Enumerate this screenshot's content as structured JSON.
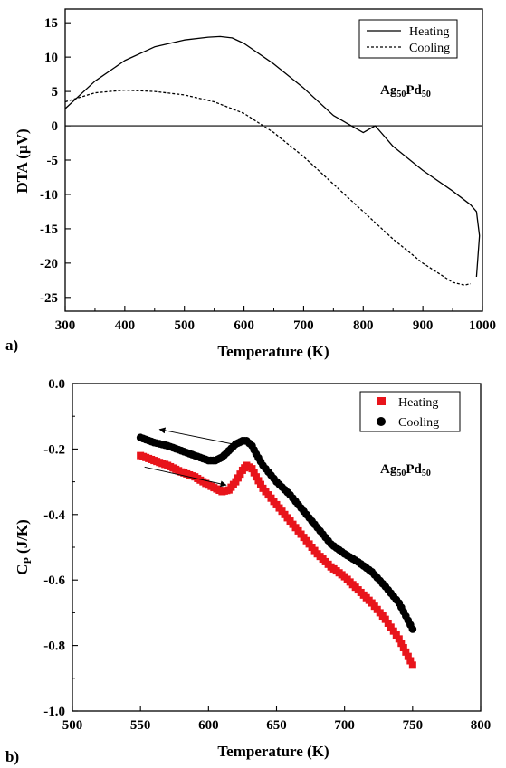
{
  "chart_data": [
    {
      "panel_label": "a)",
      "type": "line",
      "xlabel": "Temperature (K)",
      "ylabel": "DTA (µV)",
      "xlim": [
        300,
        1000
      ],
      "ylim": [
        -27,
        17
      ],
      "xticks": [
        300,
        400,
        500,
        600,
        700,
        800,
        900,
        1000
      ],
      "yticks": [
        -25,
        -20,
        -15,
        -10,
        -5,
        0,
        5,
        10,
        15
      ],
      "zero_line": true,
      "legend_position": "top-right",
      "annotation": {
        "base1": "Ag",
        "sub1": "50",
        "base2": "Pd",
        "sub2": "50"
      },
      "series": [
        {
          "name": "Heating",
          "style": "solid",
          "x": [
            300,
            350,
            400,
            450,
            500,
            540,
            560,
            580,
            600,
            650,
            700,
            750,
            800,
            820,
            850,
            900,
            950,
            980,
            990,
            995,
            990
          ],
          "y": [
            2.5,
            6.5,
            9.5,
            11.5,
            12.5,
            12.9,
            13.0,
            12.8,
            12.0,
            9.0,
            5.5,
            1.5,
            -1.0,
            0,
            -3.0,
            -6.5,
            -9.5,
            -11.5,
            -12.5,
            -16.0,
            -22.0
          ]
        },
        {
          "name": "Cooling",
          "style": "dashed",
          "x": [
            300,
            350,
            400,
            450,
            500,
            550,
            600,
            650,
            700,
            750,
            800,
            850,
            900,
            950,
            970,
            980
          ],
          "y": [
            3.5,
            4.8,
            5.2,
            5.0,
            4.5,
            3.5,
            1.8,
            -1.0,
            -4.5,
            -8.5,
            -12.5,
            -16.5,
            -20.0,
            -22.8,
            -23.2,
            -23.0
          ]
        }
      ]
    },
    {
      "panel_label": "b)",
      "type": "scatter",
      "xlabel": "Temperature (K)",
      "ylabel": "C",
      "ylabel_sub": "P",
      "ylabel_unit": " (J/K)",
      "xlim": [
        500,
        800
      ],
      "ylim": [
        -1.0,
        0.0
      ],
      "xticks": [
        500,
        550,
        600,
        650,
        700,
        750,
        800
      ],
      "yticks": [
        -1.0,
        -0.8,
        -0.6,
        -0.4,
        -0.2,
        0.0
      ],
      "legend_position": "top-right",
      "annotation": {
        "base1": "Ag",
        "sub1": "50",
        "base2": "Pd",
        "sub2": "50"
      },
      "series": [
        {
          "name": "Heating",
          "marker": "square",
          "color": "#e8141b",
          "x": [
            550,
            560,
            570,
            580,
            590,
            600,
            610,
            615,
            620,
            625,
            628,
            632,
            635,
            640,
            650,
            660,
            670,
            680,
            690,
            700,
            710,
            720,
            730,
            740,
            745,
            750
          ],
          "y": [
            -0.22,
            -0.235,
            -0.25,
            -0.27,
            -0.285,
            -0.31,
            -0.33,
            -0.325,
            -0.3,
            -0.265,
            -0.25,
            -0.26,
            -0.285,
            -0.32,
            -0.37,
            -0.42,
            -0.47,
            -0.52,
            -0.56,
            -0.59,
            -0.63,
            -0.67,
            -0.72,
            -0.78,
            -0.82,
            -0.86
          ]
        },
        {
          "name": "Cooling",
          "marker": "circle",
          "color": "#000000",
          "x": [
            550,
            560,
            570,
            580,
            590,
            600,
            605,
            610,
            615,
            620,
            625,
            628,
            632,
            635,
            640,
            650,
            660,
            670,
            680,
            690,
            700,
            710,
            720,
            730,
            740,
            745,
            750
          ],
          "y": [
            -0.165,
            -0.18,
            -0.19,
            -0.205,
            -0.22,
            -0.235,
            -0.235,
            -0.225,
            -0.205,
            -0.185,
            -0.175,
            -0.175,
            -0.19,
            -0.215,
            -0.25,
            -0.3,
            -0.34,
            -0.39,
            -0.44,
            -0.49,
            -0.52,
            -0.545,
            -0.575,
            -0.62,
            -0.67,
            -0.71,
            -0.75
          ]
        }
      ],
      "arrows": [
        {
          "direction": "toward-lower-temperature",
          "from": [
            624,
            -0.19
          ],
          "to": [
            564,
            -0.14
          ]
        },
        {
          "direction": "toward-higher-temperature",
          "from": [
            553,
            -0.255
          ],
          "to": [
            613,
            -0.31
          ]
        }
      ]
    }
  ]
}
